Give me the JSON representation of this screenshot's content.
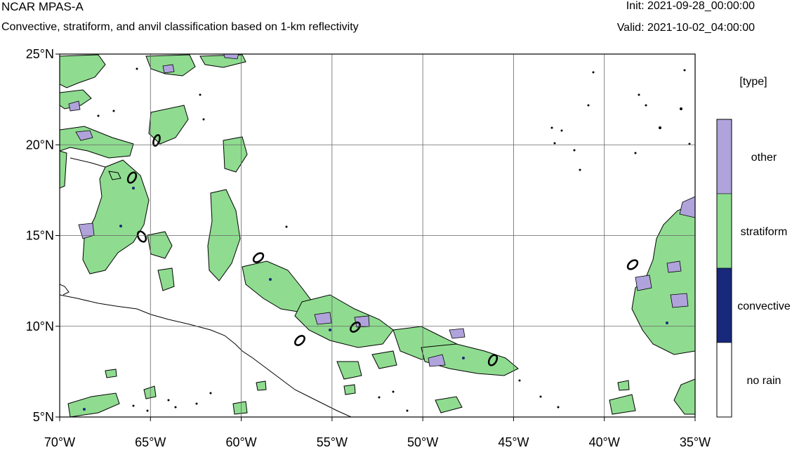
{
  "header": {
    "title": "NCAR MPAS-A",
    "subtitle": "Convective, stratiform, and anvil classification based on 1-km reflectivity",
    "init": "Init: 2021-09-28_00:00:00",
    "valid": "Valid: 2021-10-02_04:00:00"
  },
  "map": {
    "lat_range": [
      5,
      25
    ],
    "lon_range": [
      -70,
      -35
    ],
    "lat_ticks": [
      {
        "value": 25,
        "label": "25°N"
      },
      {
        "value": 20,
        "label": "20°N"
      },
      {
        "value": 15,
        "label": "15°N"
      },
      {
        "value": 10,
        "label": "10°N"
      },
      {
        "value": 5,
        "label": "5°N"
      }
    ],
    "lon_ticks": [
      {
        "value": -70,
        "label": "70°W"
      },
      {
        "value": -65,
        "label": "65°W"
      },
      {
        "value": -60,
        "label": "60°W"
      },
      {
        "value": -55,
        "label": "55°W"
      },
      {
        "value": -50,
        "label": "50°W"
      },
      {
        "value": -45,
        "label": "45°W"
      },
      {
        "value": -40,
        "label": "40°W"
      },
      {
        "value": -35,
        "label": "35°W"
      }
    ],
    "grid": true,
    "contour_label": "0",
    "colors": {
      "other": "#b0a3dc",
      "stratiform": "#8fdc90",
      "convective": "#18287a",
      "no_rain": "#ffffff"
    }
  },
  "legend": {
    "title": "[type]",
    "items": [
      {
        "label": "other",
        "color": "#b0a3dc"
      },
      {
        "label": "stratiform",
        "color": "#8fdc90"
      },
      {
        "label": "convective",
        "color": "#18287a"
      },
      {
        "label": "no rain",
        "color": "#ffffff"
      }
    ]
  }
}
